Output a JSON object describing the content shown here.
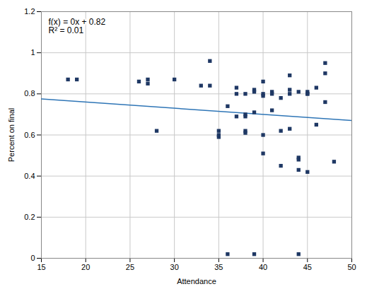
{
  "chart_data": {
    "type": "scatter",
    "xlabel": "Attendance",
    "ylabel": "Percent on final",
    "xlim": [
      15,
      50
    ],
    "ylim": [
      0,
      1.2
    ],
    "xticks": [
      15,
      20,
      25,
      30,
      35,
      40,
      45,
      50
    ],
    "yticks": [
      0,
      0.2,
      0.4,
      0.6,
      0.8,
      1,
      1.2
    ],
    "grid": true,
    "annotations": [
      "f(x) = 0x + 0.82",
      "R² = 0.01"
    ],
    "series": [
      {
        "type": "scatter",
        "marker": "square",
        "color": "#1F3864",
        "x": [
          18,
          19,
          26,
          27,
          27,
          28,
          30,
          33,
          34,
          34,
          35,
          35,
          35,
          36,
          36,
          37,
          37,
          37,
          38,
          38,
          38,
          38,
          38,
          39,
          39,
          39,
          39,
          40,
          40,
          40,
          40,
          40,
          41,
          41,
          41,
          42,
          42,
          42,
          43,
          43,
          43,
          43,
          44,
          44,
          44,
          44,
          44,
          45,
          45,
          45,
          45,
          46,
          46,
          47,
          47,
          47,
          48
        ],
        "values": [
          0.87,
          0.87,
          0.86,
          0.85,
          0.87,
          0.62,
          0.87,
          0.84,
          0.96,
          0.84,
          0.59,
          0.6,
          0.62,
          0.02,
          0.74,
          0.8,
          0.83,
          0.69,
          0.7,
          0.69,
          0.8,
          0.61,
          0.62,
          0.02,
          0.82,
          0.81,
          0.71,
          0.86,
          0.8,
          0.79,
          0.6,
          0.51,
          0.72,
          0.81,
          0.8,
          0.45,
          0.78,
          0.62,
          0.89,
          0.82,
          0.8,
          0.63,
          0.49,
          0.48,
          0.43,
          0.81,
          0.02,
          0.81,
          0.8,
          0.8,
          0.42,
          0.65,
          0.83,
          0.95,
          0.9,
          0.76,
          0.47
        ]
      },
      {
        "type": "line",
        "line_style": "solid",
        "color": "#2E75B6",
        "x": [
          15,
          50
        ],
        "values": [
          0.775,
          0.67
        ]
      }
    ]
  }
}
